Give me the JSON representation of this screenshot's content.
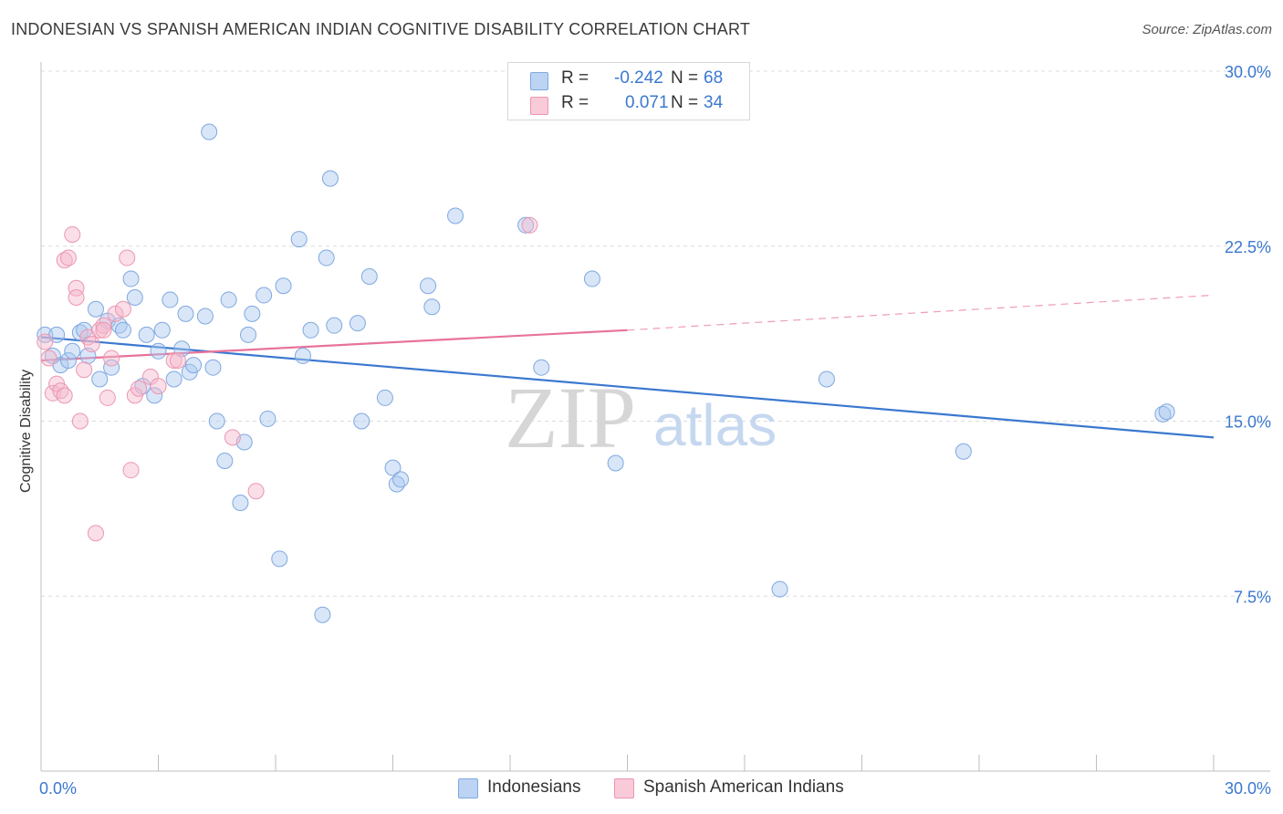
{
  "title": "INDONESIAN VS SPANISH AMERICAN INDIAN COGNITIVE DISABILITY CORRELATION CHART",
  "source": "Source: ZipAtlas.com",
  "legend": {
    "rows": [
      {
        "r_label": "R =",
        "r_value": "-0.242",
        "n_label": "N =",
        "n_value": "68",
        "color": "#a9c8f0"
      },
      {
        "r_label": "R =",
        "r_value": "0.071",
        "n_label": "N =",
        "n_value": "34",
        "color": "#f5b8cb"
      }
    ]
  },
  "bottom_legend": {
    "series1": "Indonesians",
    "series2": "Spanish American Indians"
  },
  "watermark": {
    "part1": "ZIP",
    "part2": "atlas"
  },
  "chart_data": {
    "type": "scatter",
    "title": "INDONESIAN VS SPANISH AMERICAN INDIAN COGNITIVE DISABILITY CORRELATION CHART",
    "xlabel": "",
    "ylabel": "Cognitive Disability",
    "xlim": [
      0,
      30
    ],
    "ylim": [
      0,
      30
    ],
    "x_tick_labels": [
      "0.0%",
      "30.0%"
    ],
    "y_ticks": [
      7.5,
      15.0,
      22.5,
      30.0
    ],
    "y_tick_labels": [
      "7.5%",
      "15.0%",
      "22.5%",
      "30.0%"
    ],
    "grid": true,
    "colors": {
      "series1": "#3b78d0",
      "series2": "#e8739a",
      "fill1": "#a9c8f0",
      "fill2": "#f5b8cb",
      "tick": "#3b78d0"
    },
    "series": [
      {
        "name": "Indonesians",
        "r": -0.242,
        "n": 68,
        "trend": {
          "x0": 0,
          "y0": 18.6,
          "x1": 30,
          "y1": 14.3
        },
        "points": [
          [
            0.1,
            18.7
          ],
          [
            0.3,
            17.8
          ],
          [
            0.4,
            18.7
          ],
          [
            0.5,
            17.4
          ],
          [
            0.7,
            17.6
          ],
          [
            0.8,
            18.0
          ],
          [
            1.0,
            18.8
          ],
          [
            1.1,
            18.9
          ],
          [
            1.2,
            17.8
          ],
          [
            1.4,
            19.8
          ],
          [
            1.5,
            16.8
          ],
          [
            1.7,
            19.3
          ],
          [
            1.8,
            17.3
          ],
          [
            2.0,
            19.1
          ],
          [
            2.1,
            18.9
          ],
          [
            2.3,
            21.1
          ],
          [
            2.4,
            20.3
          ],
          [
            2.6,
            16.5
          ],
          [
            2.7,
            18.7
          ],
          [
            2.9,
            16.1
          ],
          [
            3.0,
            18.0
          ],
          [
            3.1,
            18.9
          ],
          [
            3.3,
            20.2
          ],
          [
            3.4,
            16.8
          ],
          [
            3.6,
            18.1
          ],
          [
            3.7,
            19.6
          ],
          [
            3.8,
            17.1
          ],
          [
            3.9,
            17.4
          ],
          [
            4.2,
            19.5
          ],
          [
            4.3,
            27.4
          ],
          [
            4.4,
            17.3
          ],
          [
            4.5,
            15.0
          ],
          [
            4.7,
            13.3
          ],
          [
            4.8,
            20.2
          ],
          [
            5.1,
            11.5
          ],
          [
            5.2,
            14.1
          ],
          [
            5.3,
            18.7
          ],
          [
            5.4,
            19.6
          ],
          [
            5.7,
            20.4
          ],
          [
            5.8,
            15.1
          ],
          [
            6.1,
            9.1
          ],
          [
            6.2,
            20.8
          ],
          [
            6.6,
            22.8
          ],
          [
            6.7,
            17.8
          ],
          [
            6.9,
            18.9
          ],
          [
            7.2,
            6.7
          ],
          [
            7.3,
            22.0
          ],
          [
            7.4,
            25.4
          ],
          [
            7.5,
            19.1
          ],
          [
            8.1,
            19.2
          ],
          [
            8.2,
            15.0
          ],
          [
            8.4,
            21.2
          ],
          [
            8.8,
            16.0
          ],
          [
            9.0,
            13.0
          ],
          [
            9.1,
            12.3
          ],
          [
            9.2,
            12.5
          ],
          [
            9.9,
            20.8
          ],
          [
            10.0,
            19.9
          ],
          [
            10.6,
            23.8
          ],
          [
            12.4,
            23.4
          ],
          [
            12.8,
            17.3
          ],
          [
            14.1,
            21.1
          ],
          [
            14.7,
            13.2
          ],
          [
            18.9,
            7.8
          ],
          [
            20.1,
            16.8
          ],
          [
            23.6,
            13.7
          ],
          [
            28.7,
            15.3
          ],
          [
            28.8,
            15.4
          ]
        ]
      },
      {
        "name": "Spanish American Indians",
        "r": 0.071,
        "n": 34,
        "trend": {
          "x0": 0,
          "y0": 17.6,
          "x1": 15.0,
          "y1": 18.9,
          "dashed_to_x": 30,
          "dashed_to_y": 20.4
        },
        "points": [
          [
            0.1,
            18.4
          ],
          [
            0.2,
            17.7
          ],
          [
            0.3,
            16.2
          ],
          [
            0.4,
            16.6
          ],
          [
            0.5,
            16.3
          ],
          [
            0.6,
            21.9
          ],
          [
            0.7,
            22.0
          ],
          [
            0.8,
            23.0
          ],
          [
            0.9,
            20.7
          ],
          [
            0.9,
            20.3
          ],
          [
            1.0,
            15.0
          ],
          [
            1.1,
            17.2
          ],
          [
            1.2,
            18.6
          ],
          [
            1.3,
            18.3
          ],
          [
            1.4,
            10.2
          ],
          [
            1.5,
            18.9
          ],
          [
            1.6,
            19.1
          ],
          [
            1.6,
            18.9
          ],
          [
            1.7,
            16.0
          ],
          [
            1.8,
            17.7
          ],
          [
            1.9,
            19.6
          ],
          [
            2.1,
            19.8
          ],
          [
            2.2,
            22.0
          ],
          [
            2.3,
            12.9
          ],
          [
            2.4,
            16.1
          ],
          [
            2.5,
            16.4
          ],
          [
            2.8,
            16.9
          ],
          [
            3.0,
            16.5
          ],
          [
            3.4,
            17.6
          ],
          [
            3.5,
            17.6
          ],
          [
            4.9,
            14.3
          ],
          [
            5.5,
            12.0
          ],
          [
            12.5,
            23.4
          ],
          [
            0.6,
            16.1
          ]
        ]
      }
    ]
  }
}
